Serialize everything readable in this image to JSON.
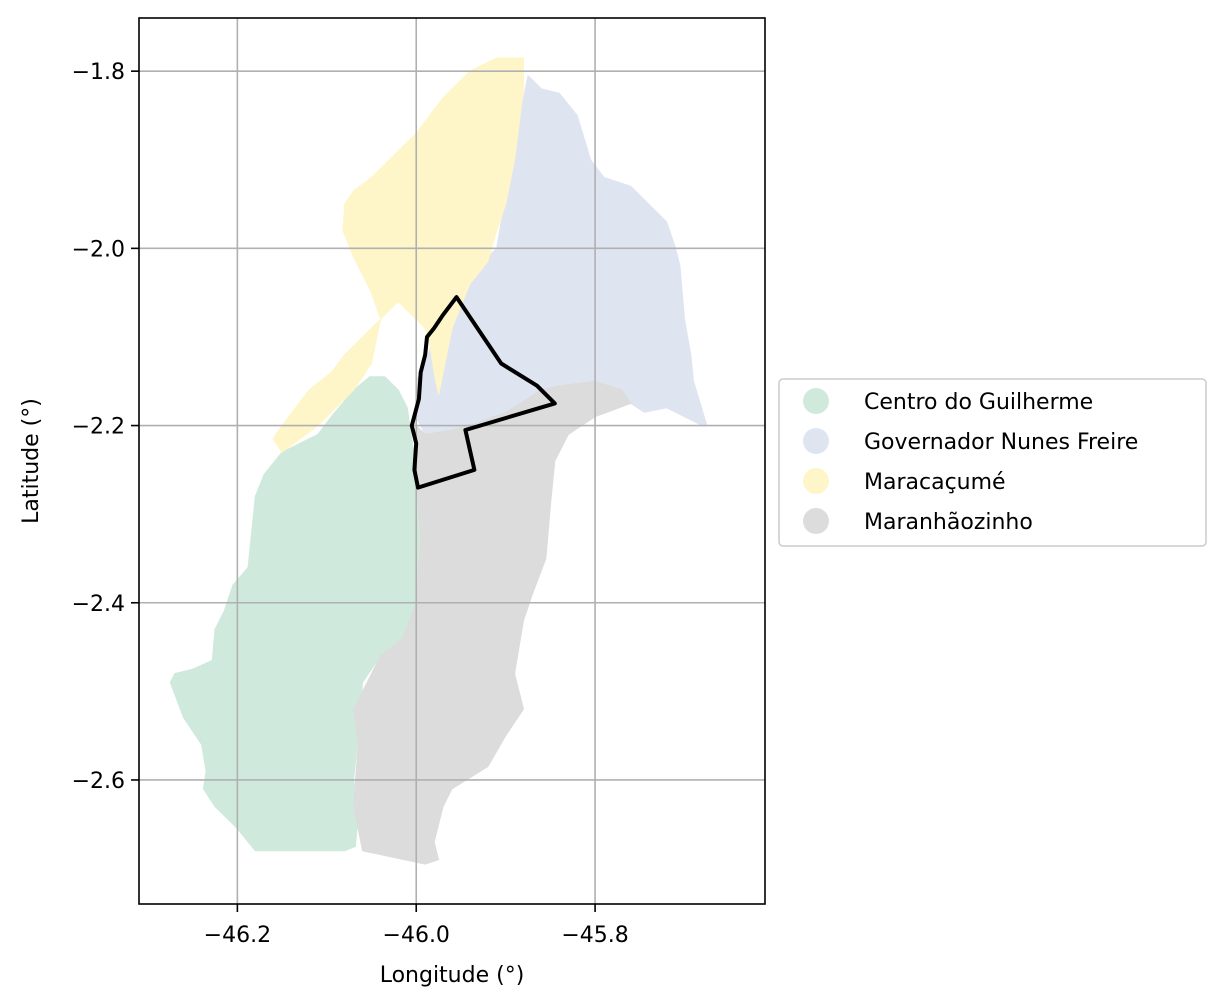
{
  "chart_data": {
    "type": "choropleth-map",
    "title": "",
    "xlabel": "Longitude (°)",
    "ylabel": "Latitude (°)",
    "xlim": [
      -46.31,
      -45.61
    ],
    "ylim": [
      -2.74,
      -1.74
    ],
    "x_ticks": [
      {
        "value": -46.2,
        "label": "−46.2"
      },
      {
        "value": -46.0,
        "label": "−46.0"
      },
      {
        "value": -45.8,
        "label": "−45.8"
      }
    ],
    "y_ticks": [
      {
        "value": -1.8,
        "label": "−1.8"
      },
      {
        "value": -2.0,
        "label": "−2.0"
      },
      {
        "value": -2.2,
        "label": "−2.2"
      },
      {
        "value": -2.4,
        "label": "−2.4"
      },
      {
        "value": -2.6,
        "label": "−2.6"
      }
    ],
    "grid": true,
    "legend_position": "right",
    "regions": [
      {
        "name": "Centro do Guilherme",
        "color": "#cfeadc",
        "polygon": [
          [
            -46.052,
            -2.145
          ],
          [
            -46.035,
            -2.145
          ],
          [
            -46.02,
            -2.16
          ],
          [
            -46.01,
            -2.18
          ],
          [
            -46.0,
            -2.25
          ],
          [
            -45.995,
            -2.33
          ],
          [
            -46.0,
            -2.4
          ],
          [
            -46.015,
            -2.44
          ],
          [
            -46.04,
            -2.46
          ],
          [
            -46.06,
            -2.49
          ],
          [
            -46.065,
            -2.55
          ],
          [
            -46.07,
            -2.6
          ],
          [
            -46.065,
            -2.64
          ],
          [
            -46.068,
            -2.675
          ],
          [
            -46.08,
            -2.68
          ],
          [
            -46.18,
            -2.68
          ],
          [
            -46.2,
            -2.655
          ],
          [
            -46.225,
            -2.63
          ],
          [
            -46.238,
            -2.61
          ],
          [
            -46.235,
            -2.59
          ],
          [
            -46.24,
            -2.56
          ],
          [
            -46.26,
            -2.53
          ],
          [
            -46.275,
            -2.49
          ],
          [
            -46.27,
            -2.48
          ],
          [
            -46.25,
            -2.475
          ],
          [
            -46.228,
            -2.465
          ],
          [
            -46.225,
            -2.43
          ],
          [
            -46.215,
            -2.41
          ],
          [
            -46.205,
            -2.38
          ],
          [
            -46.188,
            -2.36
          ],
          [
            -46.18,
            -2.28
          ],
          [
            -46.17,
            -2.255
          ],
          [
            -46.15,
            -2.23
          ],
          [
            -46.11,
            -2.21
          ],
          [
            -46.095,
            -2.19
          ],
          [
            -46.07,
            -2.16
          ]
        ]
      },
      {
        "name": "Governador Nunes Freire",
        "color": "#dfe4f1",
        "polygon": [
          [
            -45.875,
            -1.805
          ],
          [
            -45.86,
            -1.82
          ],
          [
            -45.84,
            -1.825
          ],
          [
            -45.82,
            -1.85
          ],
          [
            -45.805,
            -1.9
          ],
          [
            -45.79,
            -1.92
          ],
          [
            -45.76,
            -1.93
          ],
          [
            -45.74,
            -1.95
          ],
          [
            -45.72,
            -1.97
          ],
          [
            -45.71,
            -2.0
          ],
          [
            -45.705,
            -2.02
          ],
          [
            -45.7,
            -2.08
          ],
          [
            -45.693,
            -2.12
          ],
          [
            -45.69,
            -2.15
          ],
          [
            -45.675,
            -2.2
          ],
          [
            -45.68,
            -2.2
          ],
          [
            -45.72,
            -2.18
          ],
          [
            -45.745,
            -2.185
          ],
          [
            -45.76,
            -2.175
          ],
          [
            -45.8,
            -2.15
          ],
          [
            -45.84,
            -2.155
          ],
          [
            -45.86,
            -2.16
          ],
          [
            -45.9,
            -2.185
          ],
          [
            -45.94,
            -2.2
          ],
          [
            -45.96,
            -2.205
          ],
          [
            -45.99,
            -2.21
          ],
          [
            -46.0,
            -2.19
          ],
          [
            -46.0,
            -2.15
          ],
          [
            -45.99,
            -2.13
          ],
          [
            -45.98,
            -2.1
          ],
          [
            -45.965,
            -2.07
          ],
          [
            -45.95,
            -2.05
          ],
          [
            -45.94,
            -2.03
          ],
          [
            -45.92,
            -2.01
          ],
          [
            -45.91,
            -2.0
          ],
          [
            -45.905,
            -1.97
          ],
          [
            -45.9,
            -1.95
          ],
          [
            -45.895,
            -1.9
          ],
          [
            -45.89,
            -1.86
          ],
          [
            -45.88,
            -1.83
          ]
        ]
      },
      {
        "name": "Maracaçumé",
        "color": "#fef6c8",
        "polygon": [
          [
            -45.88,
            -1.785
          ],
          [
            -45.91,
            -1.785
          ],
          [
            -45.94,
            -1.8
          ],
          [
            -45.97,
            -1.83
          ],
          [
            -46.0,
            -1.87
          ],
          [
            -46.03,
            -1.9
          ],
          [
            -46.05,
            -1.92
          ],
          [
            -46.07,
            -1.935
          ],
          [
            -46.08,
            -1.95
          ],
          [
            -46.082,
            -1.98
          ],
          [
            -46.07,
            -2.01
          ],
          [
            -46.05,
            -2.05
          ],
          [
            -46.04,
            -2.08
          ],
          [
            -46.05,
            -2.13
          ],
          [
            -46.07,
            -2.16
          ],
          [
            -46.09,
            -2.18
          ],
          [
            -46.11,
            -2.2
          ],
          [
            -46.13,
            -2.215
          ],
          [
            -46.15,
            -2.23
          ],
          [
            -46.16,
            -2.215
          ],
          [
            -46.15,
            -2.2
          ],
          [
            -46.12,
            -2.16
          ],
          [
            -46.095,
            -2.14
          ],
          [
            -46.08,
            -2.12
          ],
          [
            -46.06,
            -2.1
          ],
          [
            -46.04,
            -2.08
          ],
          [
            -46.02,
            -2.06
          ],
          [
            -46.0,
            -2.08
          ],
          [
            -45.99,
            -2.09
          ],
          [
            -45.985,
            -2.105
          ],
          [
            -45.98,
            -2.14
          ],
          [
            -45.975,
            -2.165
          ],
          [
            -45.97,
            -2.14
          ],
          [
            -45.96,
            -2.09
          ],
          [
            -45.94,
            -2.04
          ],
          [
            -45.92,
            -2.015
          ],
          [
            -45.91,
            -1.98
          ],
          [
            -45.9,
            -1.95
          ],
          [
            -45.89,
            -1.9
          ],
          [
            -45.885,
            -1.86
          ],
          [
            -45.88,
            -1.82
          ]
        ]
      },
      {
        "name": "Maranhãozinho",
        "color": "#dcdcdc",
        "polygon": [
          [
            -45.8,
            -2.15
          ],
          [
            -45.77,
            -2.16
          ],
          [
            -45.76,
            -2.175
          ],
          [
            -45.8,
            -2.19
          ],
          [
            -45.83,
            -2.21
          ],
          [
            -45.845,
            -2.24
          ],
          [
            -45.85,
            -2.29
          ],
          [
            -45.855,
            -2.35
          ],
          [
            -45.87,
            -2.39
          ],
          [
            -45.88,
            -2.42
          ],
          [
            -45.89,
            -2.48
          ],
          [
            -45.88,
            -2.52
          ],
          [
            -45.9,
            -2.55
          ],
          [
            -45.92,
            -2.585
          ],
          [
            -45.96,
            -2.61
          ],
          [
            -45.97,
            -2.63
          ],
          [
            -45.98,
            -2.67
          ],
          [
            -45.975,
            -2.69
          ],
          [
            -45.99,
            -2.695
          ],
          [
            -46.06,
            -2.68
          ],
          [
            -46.07,
            -2.63
          ],
          [
            -46.065,
            -2.56
          ],
          [
            -46.07,
            -2.52
          ],
          [
            -46.06,
            -2.5
          ],
          [
            -46.04,
            -2.46
          ],
          [
            -46.015,
            -2.44
          ],
          [
            -46.0,
            -2.4
          ],
          [
            -45.995,
            -2.33
          ],
          [
            -46.0,
            -2.25
          ],
          [
            -46.0,
            -2.2
          ],
          [
            -45.99,
            -2.21
          ],
          [
            -45.96,
            -2.205
          ],
          [
            -45.94,
            -2.2
          ],
          [
            -45.9,
            -2.185
          ],
          [
            -45.86,
            -2.16
          ],
          [
            -45.84,
            -2.155
          ]
        ]
      }
    ],
    "highlight_outline": {
      "color": "#000000",
      "polygon": [
        [
          -45.955,
          -2.055
        ],
        [
          -45.97,
          -2.075
        ],
        [
          -45.98,
          -2.09
        ],
        [
          -45.988,
          -2.1
        ],
        [
          -45.99,
          -2.12
        ],
        [
          -45.995,
          -2.14
        ],
        [
          -45.997,
          -2.17
        ],
        [
          -46.005,
          -2.2
        ],
        [
          -46.0,
          -2.22
        ],
        [
          -46.002,
          -2.25
        ],
        [
          -45.998,
          -2.27
        ],
        [
          -45.935,
          -2.25
        ],
        [
          -45.945,
          -2.205
        ],
        [
          -45.845,
          -2.175
        ],
        [
          -45.865,
          -2.155
        ],
        [
          -45.905,
          -2.13
        ]
      ]
    },
    "legend": [
      {
        "label": "Centro do Guilherme",
        "color": "#cfeadc"
      },
      {
        "label": "Governador Nunes Freire",
        "color": "#dfe4f1"
      },
      {
        "label": "Maracaçumé",
        "color": "#fef6c8"
      },
      {
        "label": "Maranhãozinho",
        "color": "#dcdcdc"
      }
    ]
  }
}
